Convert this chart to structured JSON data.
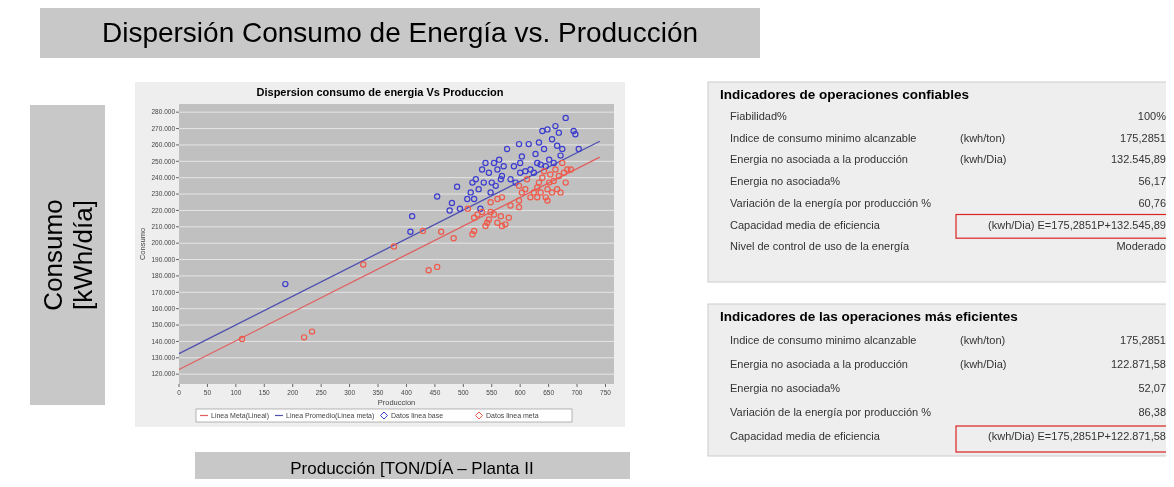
{
  "chart_data": [
    {
      "type": "scatter",
      "title": "Dispersion consumo de energia Vs Produccion",
      "xlabel": "Produccion",
      "ylabel": "Consumo",
      "annotations": [
        "Dispersión Consumo de Energía vs. Producción",
        "Consumo [kWh/día]",
        "Producción [TON/DÍA – Planta II"
      ],
      "xlim": [
        0,
        765
      ],
      "xticks": [
        0,
        50,
        100,
        150,
        200,
        250,
        300,
        350,
        400,
        450,
        500,
        550,
        600,
        650,
        700,
        750
      ],
      "ylim": [
        114000,
        285000
      ],
      "yticks": [
        {
          "value": 120000,
          "label": "120.000"
        },
        {
          "value": 130000,
          "label": "130.000"
        },
        {
          "value": 140000,
          "label": "140.000"
        },
        {
          "value": 150000,
          "label": "150.000"
        },
        {
          "value": 160000,
          "label": "160.000"
        },
        {
          "value": 170000,
          "label": "170.000"
        },
        {
          "value": 180000,
          "label": "180.000"
        },
        {
          "value": 190000,
          "label": "190.000"
        },
        {
          "value": 200000,
          "label": "200.000"
        },
        {
          "value": 210000,
          "label": "210.000"
        },
        {
          "value": 220000,
          "label": "220.000"
        },
        {
          "value": 230000,
          "label": "230.000"
        },
        {
          "value": 240000,
          "label": "240.000"
        },
        {
          "value": 250000,
          "label": "250.000"
        },
        {
          "value": 260000,
          "label": "260.000"
        },
        {
          "value": 270000,
          "label": "270.000"
        },
        {
          "value": 280000,
          "label": "280.000"
        }
      ],
      "grid": "y",
      "legend": "bottom",
      "marker": "circle",
      "series": [
        {
          "name": "Linea Meta(Lineal)",
          "type": "line",
          "color": "#e06060",
          "x": [
            0,
            740
          ],
          "values": [
            122870,
            252580
          ],
          "marker": "none"
        },
        {
          "name": "Linea Promedio(Linea meta)",
          "type": "line",
          "color": "#5050b0",
          "x": [
            0,
            740
          ],
          "values": [
            132550,
            262260
          ],
          "marker": "none"
        },
        {
          "name": "Datos linea base",
          "color": "#3c3cd0",
          "x": [
            187,
            407,
            410,
            454,
            480,
            476,
            489,
            494,
            507,
            513,
            516,
            522,
            519,
            527,
            533,
            539,
            545,
            550,
            554,
            560,
            563,
            568,
            571,
            577,
            583,
            589,
            598,
            603,
            600,
            609,
            615,
            624,
            627,
            633,
            639,
            642,
            645,
            648,
            651,
            656,
            659,
            662,
            665,
            668,
            671,
            674,
            680,
            694,
            697,
            703,
            530,
            548,
            557,
            566,
            536,
            592,
            618,
            636,
            600,
            630
          ],
          "values": [
            175000,
            207000,
            216500,
            228500,
            224500,
            220000,
            234500,
            221000,
            227000,
            231000,
            237000,
            239000,
            227000,
            233000,
            245000,
            249000,
            243000,
            237000,
            249000,
            245000,
            251000,
            241000,
            247000,
            257500,
            239000,
            247000,
            260500,
            253000,
            243000,
            244000,
            260500,
            243000,
            254500,
            261500,
            268500,
            257500,
            247000,
            269500,
            251000,
            263500,
            249000,
            271500,
            259500,
            267500,
            253500,
            257500,
            276500,
            268500,
            266500,
            257500,
            221000,
            231000,
            235000,
            239000,
            237000,
            237000,
            245000,
            248000,
            249000,
            249000
          ]
        },
        {
          "name": "Datos linea meta",
          "color": "#f05a4a",
          "x": [
            111,
            220,
            234,
            324,
            378,
            429,
            439,
            454,
            461,
            483,
            508,
            516,
            519,
            519,
            525,
            533,
            539,
            545,
            548,
            554,
            560,
            566,
            568,
            574,
            580,
            583,
            568,
            560,
            548,
            598,
            598,
            603,
            609,
            598,
            618,
            624,
            630,
            633,
            636,
            639,
            642,
            645,
            648,
            651,
            653,
            656,
            659,
            662,
            665,
            668,
            671,
            674,
            677,
            683,
            689,
            680,
            612,
            648,
            630,
            542
          ],
          "values": [
            141500,
            142500,
            146000,
            187000,
            198000,
            207500,
            183500,
            185500,
            207000,
            203000,
            221000,
            205500,
            207500,
            215500,
            217500,
            219000,
            210500,
            214500,
            219000,
            217500,
            212500,
            216500,
            210500,
            211500,
            215500,
            223000,
            228000,
            227000,
            225000,
            222000,
            226000,
            231000,
            233000,
            235000,
            228000,
            231000,
            234000,
            237000,
            231000,
            240000,
            244000,
            228000,
            233000,
            237000,
            242000,
            231000,
            238000,
            245000,
            233000,
            241000,
            231000,
            249000,
            243000,
            245000,
            245000,
            237000,
            239000,
            226000,
            228000,
            212500
          ]
        }
      ]
    },
    {
      "type": "other",
      "title": "Indicadores de operaciones confiables",
      "cell_labels": [
        [
          "Fiabilidad%",
          null,
          "100%"
        ],
        [
          "Indice de consumo minimo alcanzable",
          "(kwh/ton)",
          "175,2851"
        ],
        [
          "Energia no asociada a la producción",
          "(kwh/Dia)",
          "132.545,89"
        ],
        [
          "Energia no asociada%",
          null,
          "56,17"
        ],
        [
          "Variación de la energía por producción %",
          null,
          "60,76"
        ],
        [
          "Capacidad media de eficiencia",
          null,
          "(kwh/Dia) E=175,2851P+132.545,89"
        ],
        [
          "Nivel de control de uso de la energía",
          null,
          "Moderado"
        ]
      ]
    },
    {
      "type": "other",
      "title": "Indicadores de las operaciones más eficientes",
      "cell_labels": [
        [
          "Indice de consumo minimo alcanzable",
          "(kwh/ton)",
          "175,2851"
        ],
        [
          "Energia no asociada a la producción",
          "(kwh/Dia)",
          "122.871,58"
        ],
        [
          "Energia no asociada%",
          null,
          "52,07"
        ],
        [
          "Variación de la energía por producción %",
          null,
          "86,38"
        ],
        [
          "Capacidad media de eficiencia",
          null,
          "(kwh/Dia)  E=175,2851P+122.871,58"
        ]
      ]
    }
  ]
}
